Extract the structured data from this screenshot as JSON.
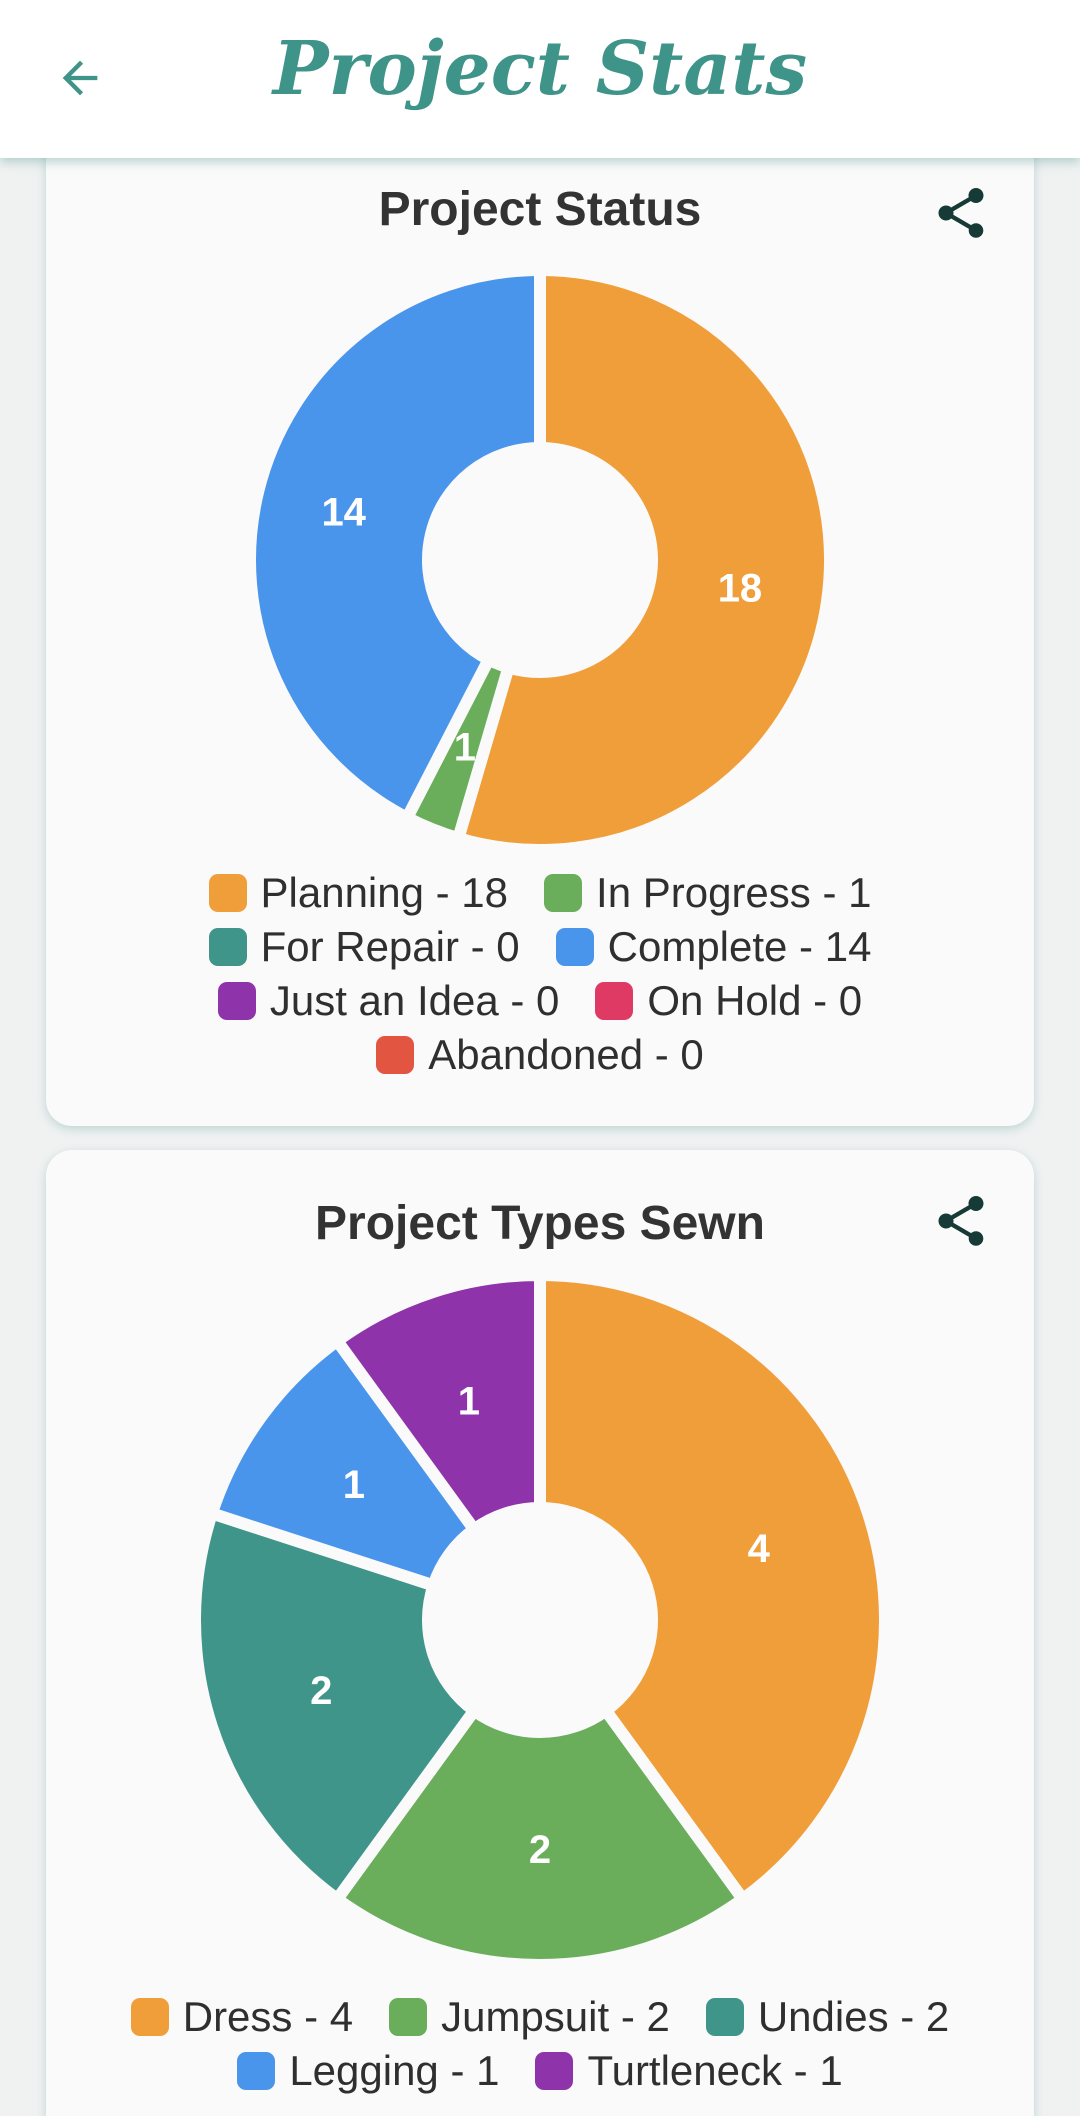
{
  "header": {
    "title": "Project Stats",
    "back_icon": "arrow-left-icon",
    "color": "#3e9489"
  },
  "cards": [
    {
      "title": "Project Status",
      "share_icon": "share-icon",
      "chart_data": {
        "type": "pie",
        "title": "Project Status",
        "categories": [
          "Planning",
          "In Progress",
          "For Repair",
          "Complete",
          "Just an Idea",
          "On Hold",
          "Abandoned"
        ],
        "values": [
          18,
          1,
          0,
          14,
          0,
          0,
          0
        ],
        "colors": [
          "#f09e3a",
          "#6aae5b",
          "#40958a",
          "#4a95ec",
          "#8e33aa",
          "#de3a64",
          "#e25541"
        ],
        "legend": [
          [
            "Planning - 18",
            "In Progress - 1"
          ],
          [
            "For Repair - 0",
            "Complete - 14"
          ],
          [
            "Just an Idea - 0",
            "On Hold - 0"
          ],
          [
            "Abandoned - 0"
          ]
        ],
        "donut": true
      }
    },
    {
      "title": "Project Types Sewn",
      "share_icon": "share-icon",
      "chart_data": {
        "type": "pie",
        "title": "Project Types Sewn",
        "categories": [
          "Dress",
          "Jumpsuit",
          "Undies",
          "Legging",
          "Turtleneck"
        ],
        "values": [
          4,
          2,
          2,
          1,
          1
        ],
        "colors": [
          "#f09e3a",
          "#6aae5b",
          "#40958a",
          "#4a95ec",
          "#8e33aa"
        ],
        "legend": [
          [
            "Dress - 4",
            "Jumpsuit - 2",
            "Undies - 2"
          ],
          [
            "Legging - 1",
            "Turtleneck - 1"
          ]
        ],
        "donut": true
      }
    }
  ]
}
